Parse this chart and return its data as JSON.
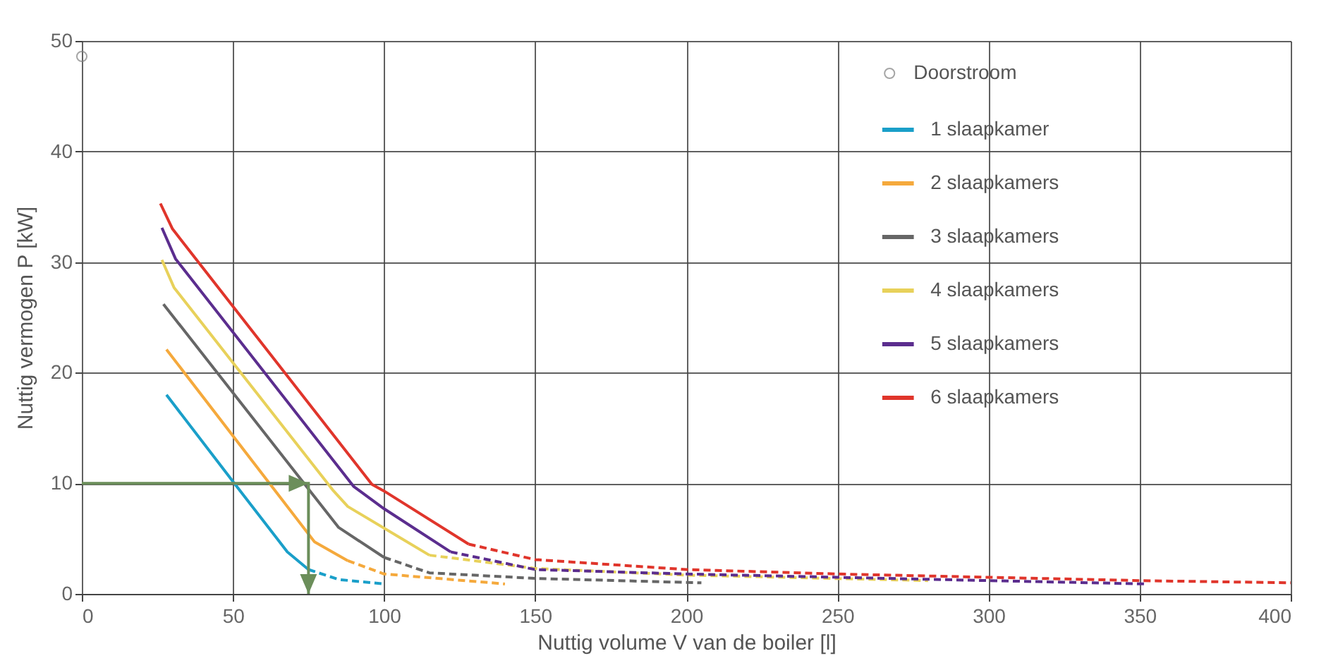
{
  "chart_data": {
    "type": "line",
    "xlabel": "Nuttig volume V van de boiler [l]",
    "ylabel": "Nuttig vermogen P [kW]",
    "xlim": [
      0,
      400
    ],
    "xticks": [
      0,
      50,
      100,
      150,
      200,
      250,
      300,
      350,
      400
    ],
    "ylim": [
      0,
      50
    ],
    "yticks": [
      0,
      10,
      20,
      30,
      40,
      50
    ],
    "grid": true,
    "legend": "top right",
    "line_style": "solid",
    "marker": "none",
    "series": [
      {
        "name": "Doorstroom",
        "type": "scatter",
        "marker": "circle",
        "color": "#808080",
        "x": [
          0
        ],
        "values": [
          48.6
        ]
      },
      {
        "name": "1 slaapkamer",
        "color": "#1a9fc9",
        "x": [
          28,
          51,
          68,
          75
        ],
        "values": [
          18,
          9.8,
          3.8,
          2.2
        ]
      },
      {
        "color": "#1a9fc9",
        "line_style": "dashed",
        "x": [
          75,
          85,
          100
        ],
        "values": [
          2.2,
          1.3,
          0.9
        ]
      },
      {
        "name": "2 slaapkamers",
        "color": "#f5a93c",
        "x": [
          28,
          77,
          88
        ],
        "values": [
          22.1,
          4.7,
          3.0
        ]
      },
      {
        "color": "#f5a93c",
        "line_style": "dashed",
        "x": [
          88,
          100,
          140
        ],
        "values": [
          3.0,
          1.8,
          0.9
        ]
      },
      {
        "name": "3 slaapkamers",
        "color": "#666666",
        "x": [
          27,
          85,
          100
        ],
        "values": [
          26.2,
          6.0,
          3.3
        ]
      },
      {
        "color": "#666666",
        "line_style": "dashed",
        "x": [
          100,
          115,
          150,
          205
        ],
        "values": [
          3.3,
          1.9,
          1.4,
          1.0
        ]
      },
      {
        "name": "4 slaapkamers",
        "color": "#e8d15a",
        "x": [
          26.5,
          30.5,
          83,
          88,
          115
        ],
        "values": [
          30.2,
          27.7,
          9.4,
          7.9,
          3.5
        ]
      },
      {
        "color": "#e8d15a",
        "line_style": "dashed",
        "x": [
          115,
          150,
          200,
          280
        ],
        "values": [
          3.5,
          2.3,
          1.7,
          1.2
        ]
      },
      {
        "name": "5 slaapkamers",
        "color": "#5b2d8e",
        "x": [
          26.5,
          31,
          90,
          100,
          122
        ],
        "values": [
          33.1,
          30.3,
          9.7,
          7.7,
          3.8
        ]
      },
      {
        "color": "#5b2d8e",
        "line_style": "dashed",
        "x": [
          122,
          150,
          200,
          250,
          300,
          352
        ],
        "values": [
          3.8,
          2.2,
          1.8,
          1.5,
          1.2,
          0.9
        ]
      },
      {
        "name": "6 slaapkamers",
        "color": "#e0352b",
        "x": [
          26,
          30,
          96,
          100,
          128
        ],
        "values": [
          35.3,
          33,
          9.9,
          9.3,
          4.5
        ]
      },
      {
        "color": "#e0352b",
        "line_style": "dashed",
        "x": [
          128,
          150,
          200,
          250,
          300,
          350,
          400
        ],
        "values": [
          4.5,
          3.1,
          2.2,
          1.8,
          1.5,
          1.2,
          1.0
        ]
      }
    ]
  }
}
